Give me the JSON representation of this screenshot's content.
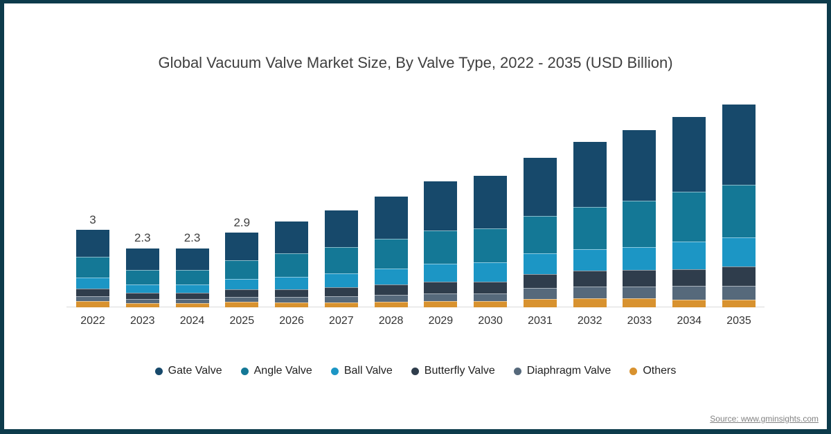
{
  "source_note": "Source: www.gminsights.com",
  "colors": {
    "frame": "#0D3B4B",
    "background": "#FFFFFF",
    "axis_line": "#D9D9D9",
    "title_text": "#3F3F3F",
    "tick_text": "#333333",
    "label_text": "#404040",
    "legend_text": "#1F1F1F",
    "source_text": "#828282"
  },
  "chart_data": {
    "type": "bar",
    "stacked": true,
    "title": "Global Vacuum Valve Market Size, By Valve Type, 2022 - 2035 (USD Billion)",
    "xlabel": "",
    "ylabel": "",
    "unit": "USD Billion",
    "grid": false,
    "legend_position": "bottom",
    "legend_marker": "circle",
    "ylim": [
      0,
      8.5
    ],
    "categories": [
      "2022",
      "2023",
      "2024",
      "2025",
      "2026",
      "2027",
      "2028",
      "2029",
      "2030",
      "2031",
      "2032",
      "2033",
      "2034",
      "2035"
    ],
    "bar_total_labels": [
      "3",
      "2.3",
      "2.3",
      "2.9",
      "",
      "",
      "",
      "",
      "",
      "",
      "",
      "",
      "",
      ""
    ],
    "totals_estimated": [
      3.0,
      2.3,
      2.3,
      2.9,
      3.35,
      3.8,
      4.3,
      4.9,
      5.15,
      5.85,
      6.45,
      6.95,
      7.45,
      7.95
    ],
    "series": [
      {
        "name": "Gate Valve",
        "color": "#17496B",
        "values": [
          1.05,
          0.85,
          0.85,
          1.08,
          1.25,
          1.44,
          1.65,
          1.92,
          2.05,
          2.27,
          2.54,
          2.77,
          2.92,
          3.14
        ]
      },
      {
        "name": "Angle Valve",
        "color": "#147896",
        "values": [
          0.8,
          0.57,
          0.57,
          0.72,
          0.92,
          1.02,
          1.15,
          1.29,
          1.33,
          1.47,
          1.65,
          1.8,
          1.95,
          2.05
        ]
      },
      {
        "name": "Ball Valve",
        "color": "#1C96C5",
        "values": [
          0.42,
          0.32,
          0.32,
          0.4,
          0.48,
          0.55,
          0.62,
          0.7,
          0.75,
          0.8,
          0.83,
          0.9,
          1.08,
          1.14
        ]
      },
      {
        "name": "Butterfly Valve",
        "color": "#2F3D4C",
        "values": [
          0.3,
          0.24,
          0.24,
          0.3,
          0.3,
          0.35,
          0.4,
          0.45,
          0.47,
          0.55,
          0.62,
          0.65,
          0.64,
          0.77
        ]
      },
      {
        "name": "Diaphragm Valve",
        "color": "#56697B",
        "values": [
          0.2,
          0.15,
          0.15,
          0.19,
          0.22,
          0.24,
          0.26,
          0.3,
          0.3,
          0.44,
          0.45,
          0.47,
          0.54,
          0.54
        ]
      },
      {
        "name": "Others",
        "color": "#D8922F",
        "values": [
          0.23,
          0.17,
          0.17,
          0.21,
          0.18,
          0.2,
          0.22,
          0.24,
          0.25,
          0.33,
          0.36,
          0.36,
          0.29,
          0.31
        ]
      }
    ]
  }
}
